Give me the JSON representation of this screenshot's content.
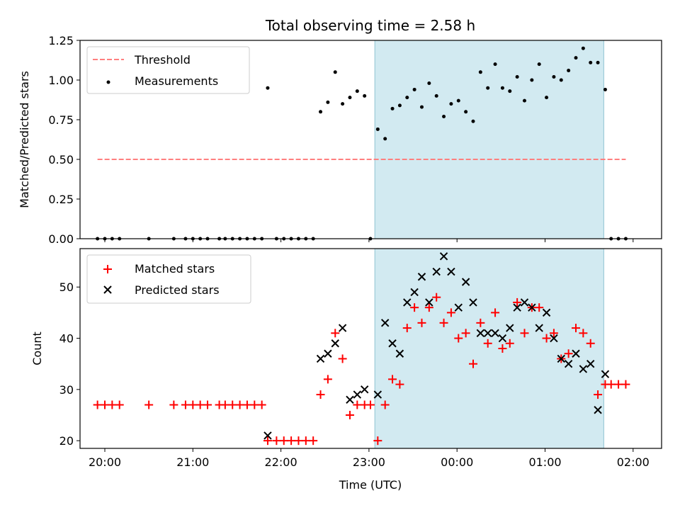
{
  "chart_data": {
    "title": "Total observing time = 2.58 h",
    "xlabel": "Time (UTC)",
    "xticks": [
      "20:00",
      "21:00",
      "22:00",
      "23:00",
      "00:00",
      "01:00",
      "02:00"
    ],
    "highlight_color": "#add8e6",
    "panels": [
      {
        "type": "scatter",
        "ylabel": "Matched/Predicted stars",
        "ylim": [
          0,
          1.25
        ],
        "yticks": [
          "0.00",
          "0.25",
          "0.50",
          "0.75",
          "1.00",
          "1.25"
        ],
        "legend_placement": "upper-left",
        "highlight": {
          "start": "23:04",
          "end": "01:40"
        },
        "series": [
          {
            "name": "Threshold",
            "kind": "dashed-line",
            "color": "#ff7f7f",
            "points": [
              [
                "19:55",
                0.5
              ],
              [
                "01:55",
                0.5
              ]
            ]
          },
          {
            "name": "Measurements",
            "kind": "dots",
            "color": "#000000",
            "points": [
              [
                "19:55",
                0.0
              ],
              [
                "20:00",
                0.0
              ],
              [
                "20:05",
                0.0
              ],
              [
                "20:10",
                0.0
              ],
              [
                "20:30",
                0.0
              ],
              [
                "20:47",
                0.0
              ],
              [
                "20:55",
                0.0
              ],
              [
                "21:00",
                0.0
              ],
              [
                "21:05",
                0.0
              ],
              [
                "21:10",
                0.0
              ],
              [
                "21:18",
                0.0
              ],
              [
                "21:22",
                0.0
              ],
              [
                "21:27",
                0.0
              ],
              [
                "21:32",
                0.0
              ],
              [
                "21:37",
                0.0
              ],
              [
                "21:42",
                0.0
              ],
              [
                "21:47",
                0.0
              ],
              [
                "21:51",
                0.95
              ],
              [
                "21:57",
                0.0
              ],
              [
                "22:02",
                0.0
              ],
              [
                "22:07",
                0.0
              ],
              [
                "22:12",
                0.0
              ],
              [
                "22:17",
                0.0
              ],
              [
                "22:22",
                0.0
              ],
              [
                "22:27",
                0.8
              ],
              [
                "22:32",
                0.86
              ],
              [
                "22:37",
                1.05
              ],
              [
                "22:42",
                0.85
              ],
              [
                "22:47",
                0.89
              ],
              [
                "22:52",
                0.93
              ],
              [
                "22:57",
                0.9
              ],
              [
                "23:01",
                0.0
              ],
              [
                "23:06",
                0.69
              ],
              [
                "23:11",
                0.63
              ],
              [
                "23:16",
                0.82
              ],
              [
                "23:21",
                0.84
              ],
              [
                "23:26",
                0.89
              ],
              [
                "23:31",
                0.94
              ],
              [
                "23:36",
                0.83
              ],
              [
                "23:41",
                0.98
              ],
              [
                "23:46",
                0.9
              ],
              [
                "23:51",
                0.77
              ],
              [
                "23:56",
                0.85
              ],
              [
                "00:01",
                0.87
              ],
              [
                "00:06",
                0.8
              ],
              [
                "00:11",
                0.74
              ],
              [
                "00:16",
                1.05
              ],
              [
                "00:21",
                0.95
              ],
              [
                "00:26",
                1.1
              ],
              [
                "00:31",
                0.95
              ],
              [
                "00:36",
                0.93
              ],
              [
                "00:41",
                1.02
              ],
              [
                "00:46",
                0.87
              ],
              [
                "00:51",
                1.0
              ],
              [
                "00:56",
                1.1
              ],
              [
                "01:01",
                0.89
              ],
              [
                "01:06",
                1.02
              ],
              [
                "01:11",
                1.0
              ],
              [
                "01:16",
                1.06
              ],
              [
                "01:21",
                1.14
              ],
              [
                "01:26",
                1.2
              ],
              [
                "01:31",
                1.11
              ],
              [
                "01:36",
                1.11
              ],
              [
                "01:41",
                0.94
              ],
              [
                "01:45",
                0.0
              ],
              [
                "01:50",
                0.0
              ],
              [
                "01:55",
                0.0
              ]
            ]
          }
        ]
      },
      {
        "type": "scatter",
        "ylabel": "Count",
        "ylim": [
          18.5,
          57.5
        ],
        "yticks": [
          "20",
          "30",
          "40",
          "50"
        ],
        "legend_placement": "upper-left",
        "highlight": {
          "start": "23:04",
          "end": "01:40"
        },
        "series": [
          {
            "name": "Matched stars",
            "kind": "plus",
            "color": "#ff0000",
            "points": [
              [
                "19:55",
                27
              ],
              [
                "20:00",
                27
              ],
              [
                "20:05",
                27
              ],
              [
                "20:10",
                27
              ],
              [
                "20:30",
                27
              ],
              [
                "20:47",
                27
              ],
              [
                "20:55",
                27
              ],
              [
                "21:00",
                27
              ],
              [
                "21:05",
                27
              ],
              [
                "21:10",
                27
              ],
              [
                "21:18",
                27
              ],
              [
                "21:22",
                27
              ],
              [
                "21:27",
                27
              ],
              [
                "21:32",
                27
              ],
              [
                "21:37",
                27
              ],
              [
                "21:42",
                27
              ],
              [
                "21:47",
                27
              ],
              [
                "21:51",
                20
              ],
              [
                "21:57",
                20
              ],
              [
                "22:02",
                20
              ],
              [
                "22:07",
                20
              ],
              [
                "22:12",
                20
              ],
              [
                "22:17",
                20
              ],
              [
                "22:22",
                20
              ],
              [
                "22:27",
                29
              ],
              [
                "22:32",
                32
              ],
              [
                "22:37",
                41
              ],
              [
                "22:42",
                36
              ],
              [
                "22:47",
                25
              ],
              [
                "22:52",
                27
              ],
              [
                "22:57",
                27
              ],
              [
                "23:01",
                27
              ],
              [
                "23:06",
                20
              ],
              [
                "23:11",
                27
              ],
              [
                "23:16",
                32
              ],
              [
                "23:21",
                31
              ],
              [
                "23:26",
                42
              ],
              [
                "23:31",
                46
              ],
              [
                "23:36",
                43
              ],
              [
                "23:41",
                46
              ],
              [
                "23:46",
                48
              ],
              [
                "23:51",
                43
              ],
              [
                "23:56",
                45
              ],
              [
                "00:01",
                40
              ],
              [
                "00:06",
                41
              ],
              [
                "00:11",
                35
              ],
              [
                "00:16",
                43
              ],
              [
                "00:21",
                39
              ],
              [
                "00:26",
                45
              ],
              [
                "00:31",
                38
              ],
              [
                "00:36",
                39
              ],
              [
                "00:41",
                47
              ],
              [
                "00:46",
                41
              ],
              [
                "00:51",
                46
              ],
              [
                "00:56",
                46
              ],
              [
                "01:01",
                40
              ],
              [
                "01:06",
                41
              ],
              [
                "01:11",
                36
              ],
              [
                "01:16",
                37
              ],
              [
                "01:21",
                42
              ],
              [
                "01:26",
                41
              ],
              [
                "01:31",
                39
              ],
              [
                "01:36",
                29
              ],
              [
                "01:41",
                31
              ],
              [
                "01:45",
                31
              ],
              [
                "01:50",
                31
              ],
              [
                "01:55",
                31
              ]
            ]
          },
          {
            "name": "Predicted stars",
            "kind": "x",
            "color": "#000000",
            "points": [
              [
                "21:51",
                21
              ],
              [
                "22:27",
                36
              ],
              [
                "22:32",
                37
              ],
              [
                "22:37",
                39
              ],
              [
                "22:42",
                42
              ],
              [
                "22:47",
                28
              ],
              [
                "22:52",
                29
              ],
              [
                "22:57",
                30
              ],
              [
                "23:06",
                29
              ],
              [
                "23:11",
                43
              ],
              [
                "23:16",
                39
              ],
              [
                "23:21",
                37
              ],
              [
                "23:26",
                47
              ],
              [
                "23:31",
                49
              ],
              [
                "23:36",
                52
              ],
              [
                "23:41",
                47
              ],
              [
                "23:46",
                53
              ],
              [
                "23:51",
                56
              ],
              [
                "23:56",
                53
              ],
              [
                "00:01",
                46
              ],
              [
                "00:06",
                51
              ],
              [
                "00:11",
                47
              ],
              [
                "00:16",
                41
              ],
              [
                "00:21",
                41
              ],
              [
                "00:26",
                41
              ],
              [
                "00:31",
                40
              ],
              [
                "00:36",
                42
              ],
              [
                "00:41",
                46
              ],
              [
                "00:46",
                47
              ],
              [
                "00:51",
                46
              ],
              [
                "00:56",
                42
              ],
              [
                "01:01",
                45
              ],
              [
                "01:06",
                40
              ],
              [
                "01:11",
                36
              ],
              [
                "01:16",
                35
              ],
              [
                "01:21",
                37
              ],
              [
                "01:26",
                34
              ],
              [
                "01:31",
                35
              ],
              [
                "01:36",
                26
              ],
              [
                "01:41",
                33
              ]
            ]
          }
        ]
      }
    ]
  }
}
